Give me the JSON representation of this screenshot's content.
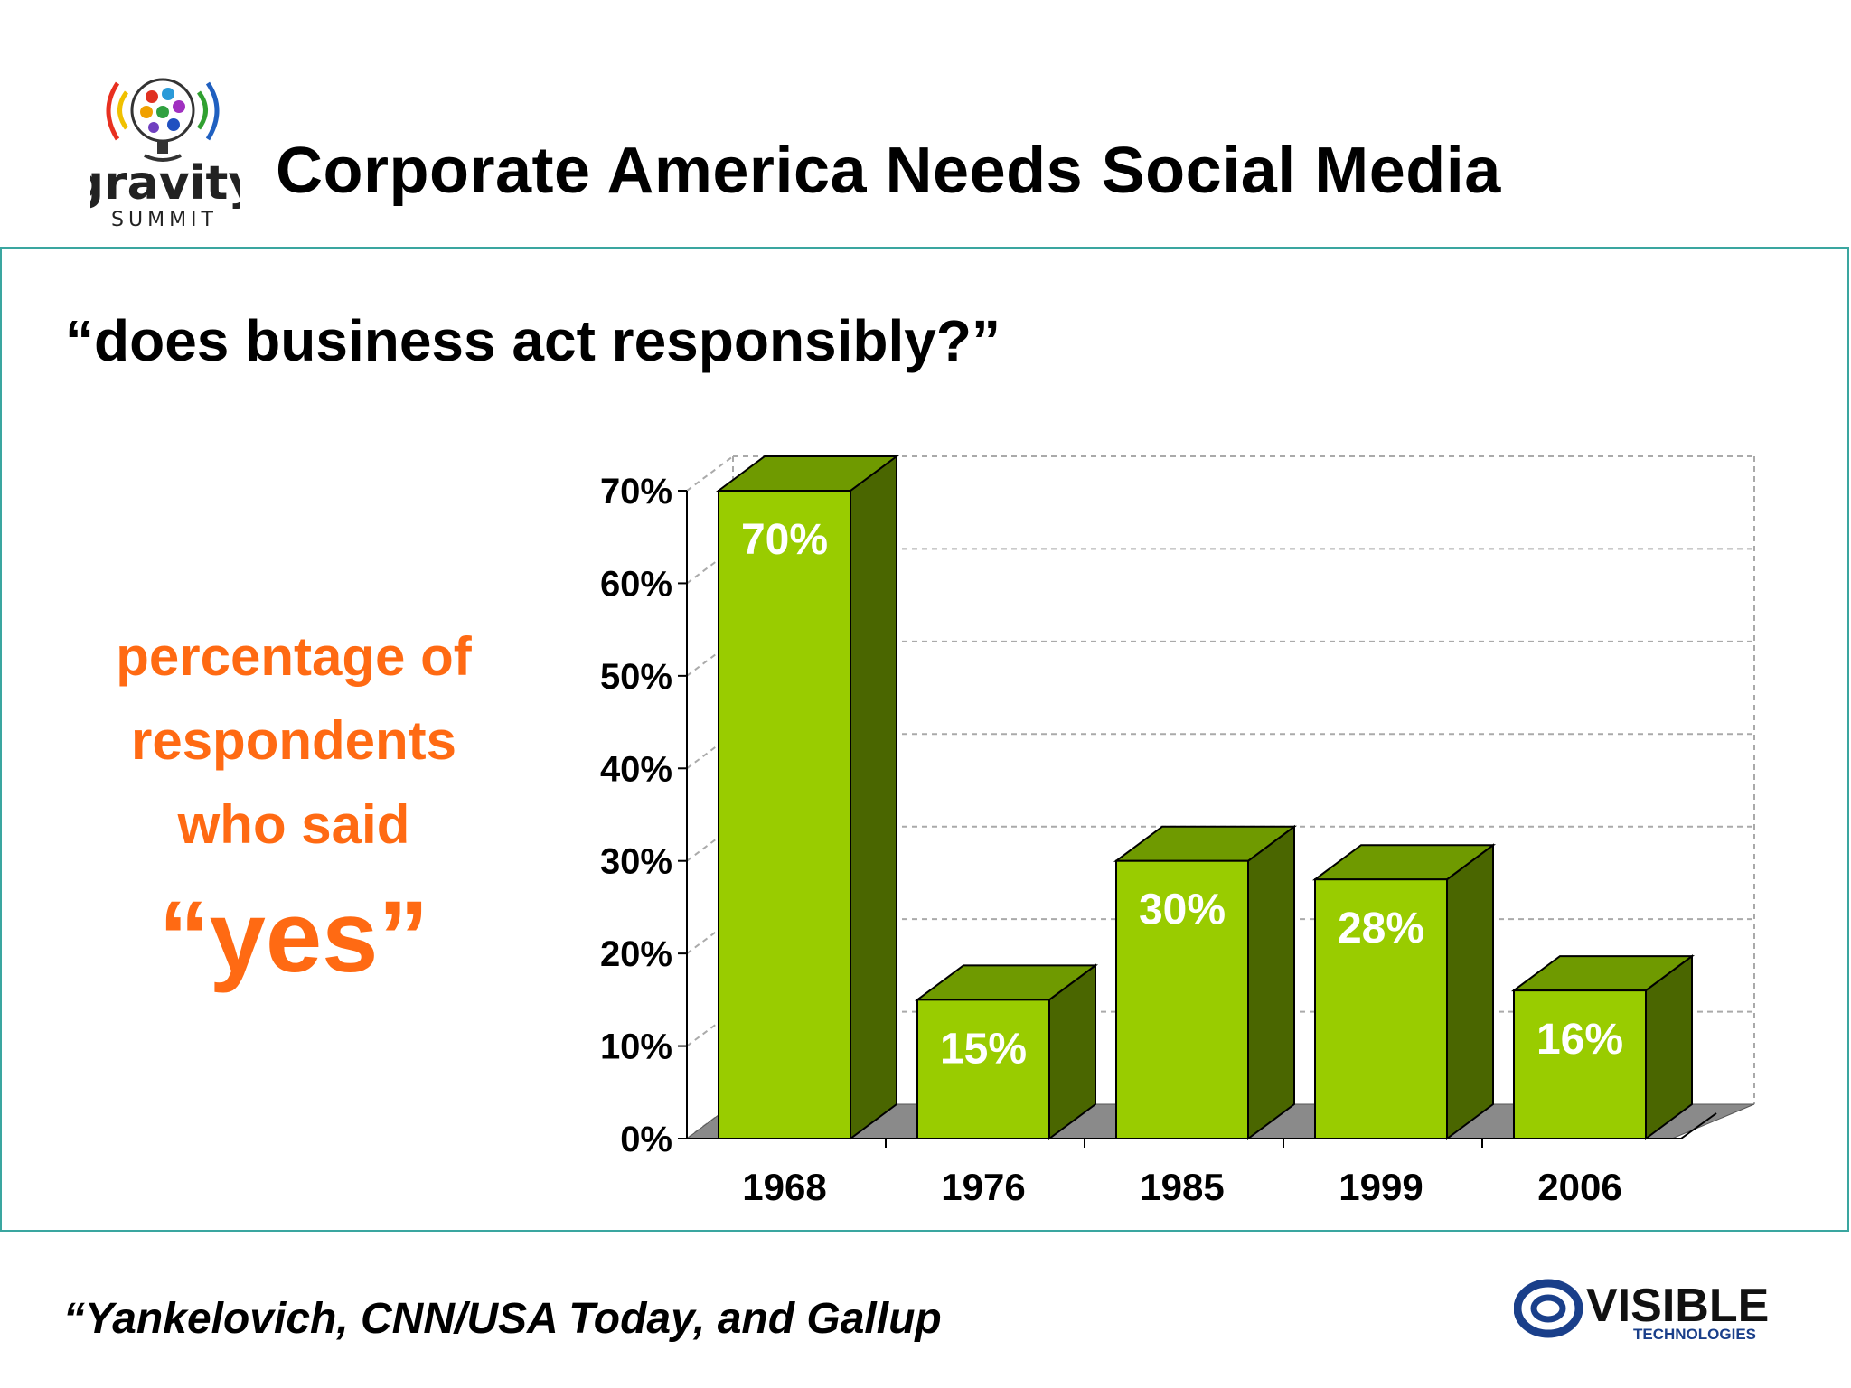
{
  "header": {
    "title": "Corporate America Needs Social Media",
    "logo_text_main": "gravity",
    "logo_text_sub": "SUMMIT"
  },
  "question": "“does business act responsibly?”",
  "caption": {
    "line1": "percentage of",
    "line2": "respondents",
    "line3": "who said",
    "emphasis": "“yes”"
  },
  "footer": {
    "source": "“Yankelovich, CNN/USA Today, and Gallup",
    "logo_text_main": "VISIBLE",
    "logo_text_sub": "TECHNOLOGIES"
  },
  "colors": {
    "accent_orange": "#ff6a13",
    "bar_front": "#99cc00",
    "bar_top": "#6f9a00",
    "bar_side": "#4a6600",
    "frame_border": "#3aa6a0",
    "logo_blue": "#1a3f8a"
  },
  "chart_data": {
    "type": "bar",
    "style": "3d",
    "categories": [
      "1968",
      "1976",
      "1985",
      "1999",
      "2006"
    ],
    "values": [
      70,
      15,
      30,
      28,
      16
    ],
    "data_labels": [
      "70%",
      "15%",
      "30%",
      "28%",
      "16%"
    ],
    "title": "",
    "xlabel": "",
    "ylabel": "",
    "ylim": [
      0,
      70
    ],
    "yticks": [
      0,
      10,
      20,
      30,
      40,
      50,
      60,
      70
    ],
    "ytick_labels": [
      "0%",
      "10%",
      "20%",
      "30%",
      "40%",
      "50%",
      "60%",
      "70%"
    ],
    "grid": true,
    "grid_style": "dashed",
    "legend": "none"
  }
}
